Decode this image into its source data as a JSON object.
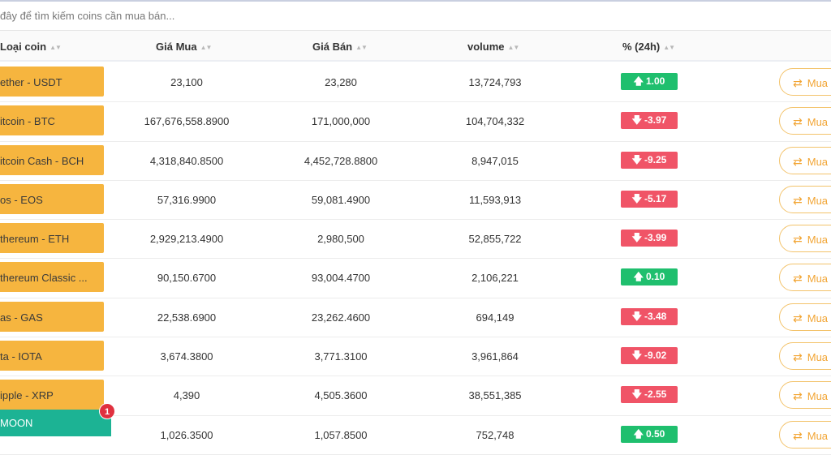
{
  "search": {
    "placeholder": "đây để tìm kiếm coins cần mua bán..."
  },
  "columns": {
    "coin": "Loại coin",
    "buy": "Giá Mua",
    "sell": "Giá Bán",
    "volume": "volume",
    "change": "% (24h)",
    "sort_glyph": "▲▼"
  },
  "action_label": "Mua",
  "action_icon": "exchange-arrows-icon",
  "rows": [
    {
      "coin": "ether - USDT",
      "buy": "23,100",
      "sell": "23,280",
      "volume": "13,724,793",
      "change": "1.00",
      "dir": "up"
    },
    {
      "coin": "itcoin - BTC",
      "buy": "167,676,558.8900",
      "sell": "171,000,000",
      "volume": "104,704,332",
      "change": "-3.97",
      "dir": "down"
    },
    {
      "coin": "itcoin Cash - BCH",
      "buy": "4,318,840.8500",
      "sell": "4,452,728.8800",
      "volume": "8,947,015",
      "change": "-9.25",
      "dir": "down"
    },
    {
      "coin": "os - EOS",
      "buy": "57,316.9900",
      "sell": "59,081.4900",
      "volume": "11,593,913",
      "change": "-5.17",
      "dir": "down"
    },
    {
      "coin": "thereum - ETH",
      "buy": "2,929,213.4900",
      "sell": "2,980,500",
      "volume": "52,855,722",
      "change": "-3.99",
      "dir": "down"
    },
    {
      "coin": "thereum Classic ...",
      "buy": "90,150.6700",
      "sell": "93,004.4700",
      "volume": "2,106,221",
      "change": "0.10",
      "dir": "up"
    },
    {
      "coin": "as - GAS",
      "buy": "22,538.6900",
      "sell": "23,262.4600",
      "volume": "694,149",
      "change": "-3.48",
      "dir": "down"
    },
    {
      "coin": "ta - IOTA",
      "buy": "3,674.3800",
      "sell": "3,771.3100",
      "volume": "3,961,864",
      "change": "-9.02",
      "dir": "down"
    },
    {
      "coin": "ipple - XRP",
      "buy": "4,390",
      "sell": "4,505.3600",
      "volume": "38,551,385",
      "change": "-2.55",
      "dir": "down"
    },
    {
      "coin": "",
      "buy": "1,026.3500",
      "sell": "1,057.8500",
      "volume": "752,748",
      "change": "0.50",
      "dir": "up"
    }
  ],
  "moon": {
    "label": "MOON",
    "notification_count": "1"
  },
  "colors": {
    "coin_bg": "#f6b53f",
    "up": "#1fbf6e",
    "down": "#f05467",
    "moon_bg": "#1cb394",
    "button_accent": "#f2a534"
  }
}
